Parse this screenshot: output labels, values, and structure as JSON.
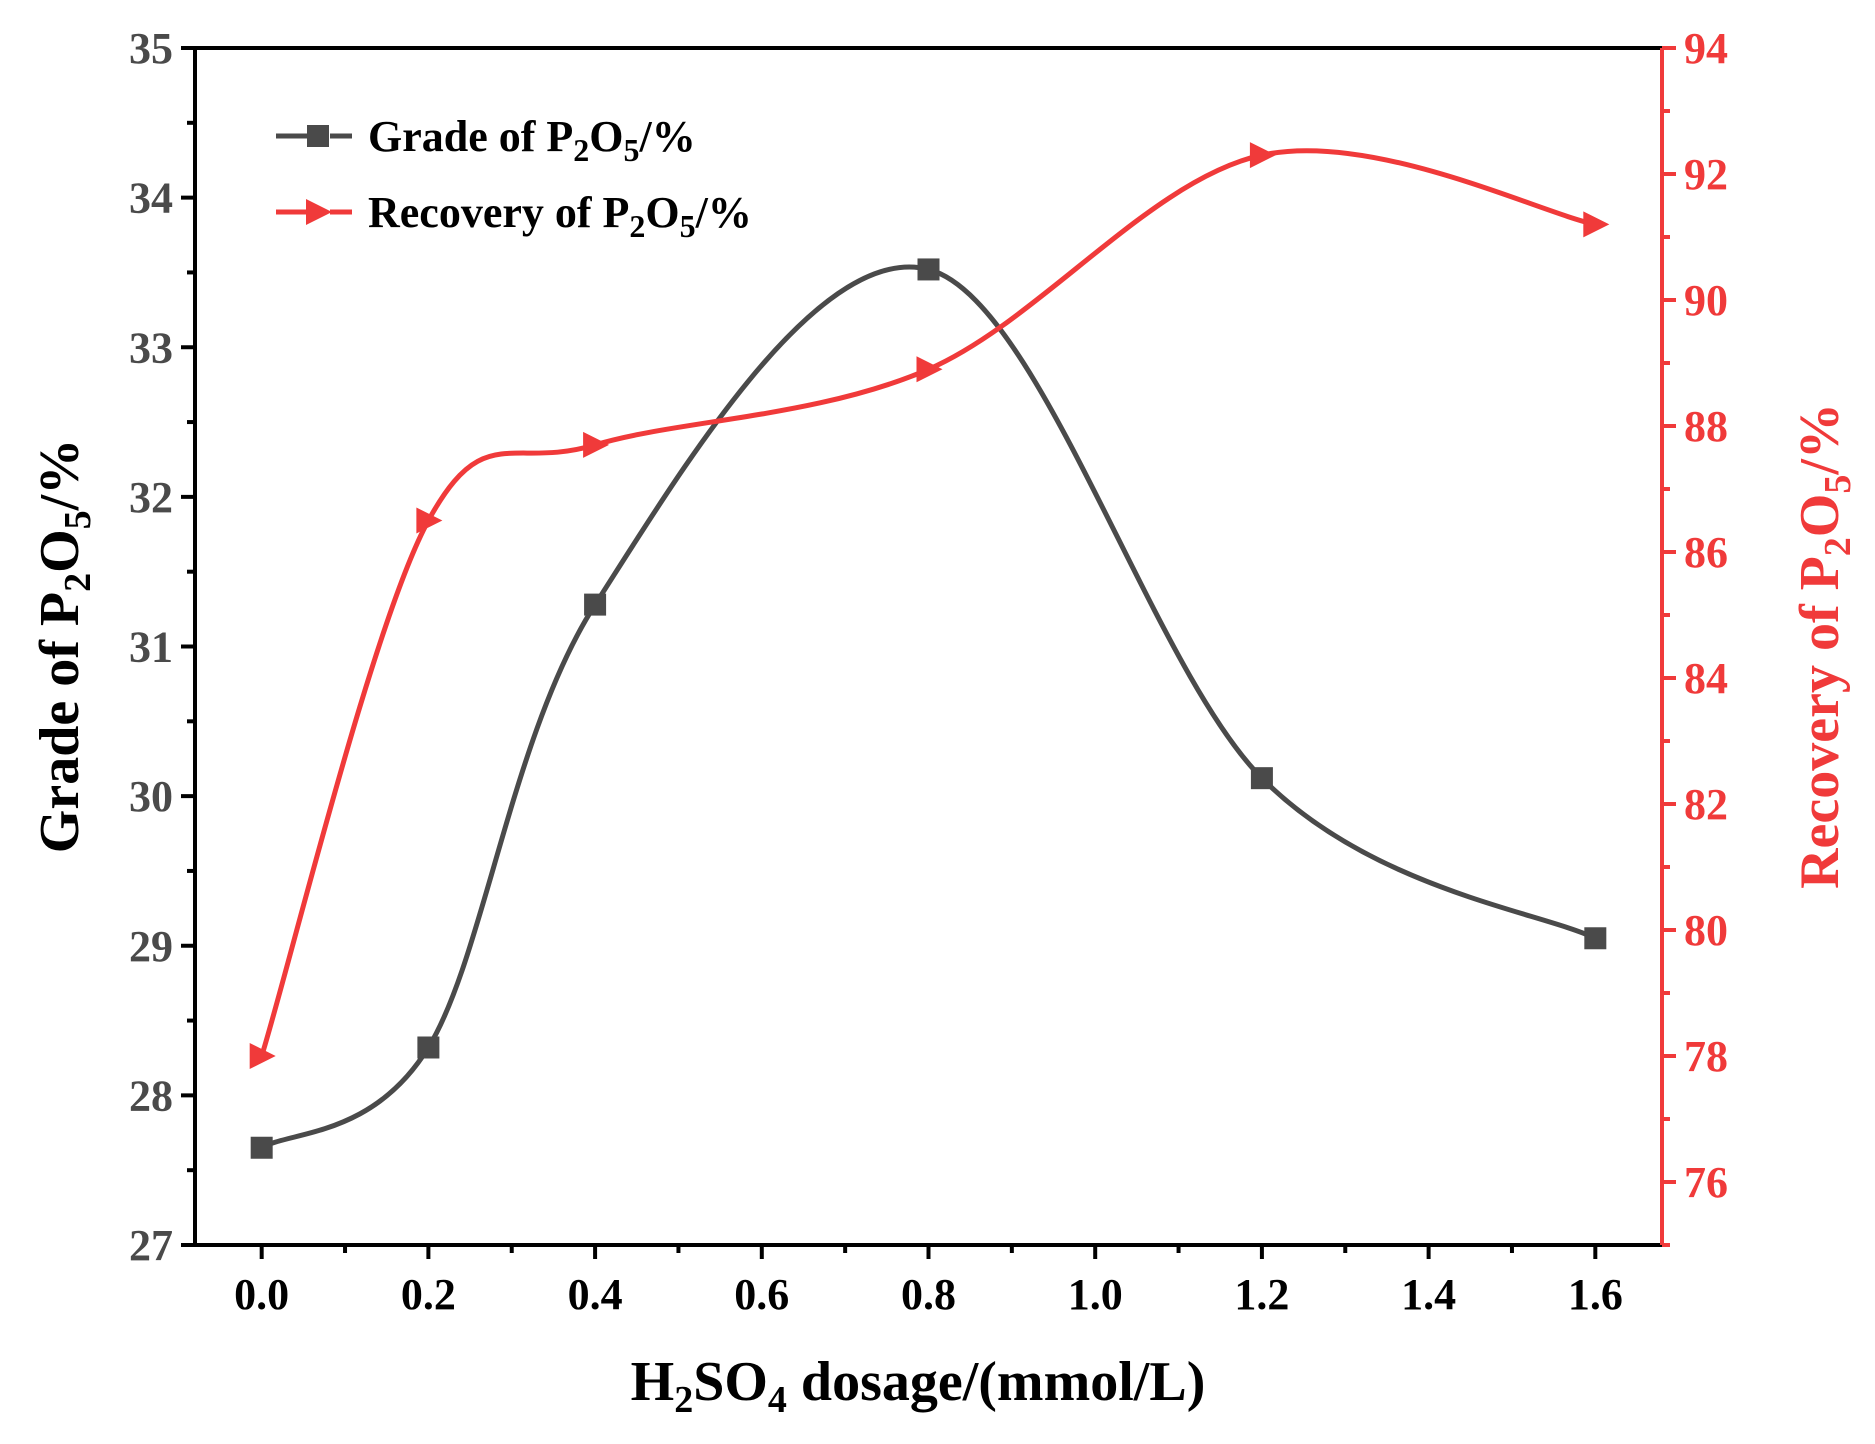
{
  "chart_data": {
    "type": "line",
    "title": "",
    "x": [
      0.0,
      0.2,
      0.4,
      0.8,
      1.2,
      1.6
    ],
    "xlabel": {
      "pre": "H",
      "sub1": "2",
      "mid": "SO",
      "sub2": "4",
      "post": " dosage/(mmol/L)"
    },
    "ylabel_left": {
      "pre": "Grade of P",
      "sub1": "2",
      "mid": "O",
      "sub2": "5",
      "post": "/%"
    },
    "ylabel_right": {
      "pre": "Recovery of P",
      "sub1": "2",
      "mid": "O",
      "sub2": "5",
      "post": "/%"
    },
    "xlim": [
      -0.08,
      1.68
    ],
    "ylim_left": [
      27,
      35
    ],
    "ylim_right": [
      75,
      94
    ],
    "x_ticks": [
      "0.0",
      "0.2",
      "0.4",
      "0.6",
      "0.8",
      "1.0",
      "1.2",
      "1.4",
      "1.6"
    ],
    "y_left_ticks": [
      "27",
      "28",
      "29",
      "30",
      "31",
      "32",
      "33",
      "34",
      "35"
    ],
    "y_right_ticks": [
      "76",
      "78",
      "80",
      "82",
      "84",
      "86",
      "88",
      "90",
      "92",
      "94"
    ],
    "series": [
      {
        "name": "Grade of P2O5/%",
        "legend": {
          "pre": "Grade of P",
          "sub1": "2",
          "mid": "O",
          "sub2": "5",
          "post": "/%"
        },
        "axis": "left",
        "marker": "square",
        "color": "#4a4a4a",
        "values": [
          27.65,
          28.32,
          31.28,
          33.52,
          30.12,
          29.05
        ]
      },
      {
        "name": "Recovery of P2O5/%",
        "legend": {
          "pre": "Recovery of P",
          "sub1": "2",
          "mid": "O",
          "sub2": "5",
          "post": "/%"
        },
        "axis": "right",
        "marker": "triangle-right",
        "color": "#f03a3a",
        "values": [
          78.0,
          86.5,
          87.7,
          88.9,
          92.3,
          91.2
        ]
      }
    ],
    "legend_position": "top-left"
  }
}
